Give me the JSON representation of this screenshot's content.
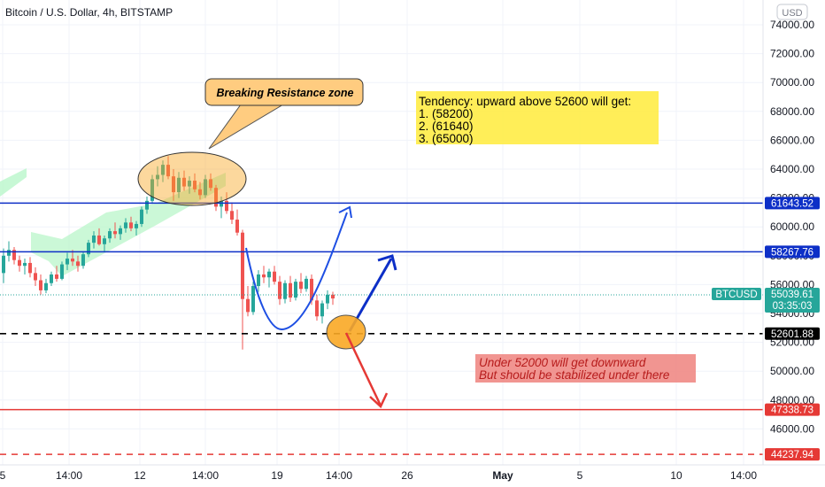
{
  "chart_data": {
    "type": "candlestick",
    "title": "Bitcoin / U.S. Dollar, 4h, BITSTAMP",
    "currency_label": "USD",
    "ylim": [
      43500,
      75500
    ],
    "y_ticks": [
      46000,
      48000,
      50000,
      52000,
      54000,
      56000,
      58000,
      60000,
      62000,
      64000,
      66000,
      68000,
      70000,
      72000,
      74000
    ],
    "x_ticks": [
      "5",
      "14:00",
      "12",
      "14:00",
      "19",
      "14:00",
      "26",
      "May",
      "5",
      "10",
      "14:00"
    ],
    "series": [
      {
        "name": "BTCUSD",
        "ohlc": [
          [
            56800,
            58500,
            56100,
            58000
          ],
          [
            58000,
            59000,
            57600,
            58400
          ],
          [
            58400,
            58600,
            57400,
            57700
          ],
          [
            57700,
            58000,
            56900,
            57300
          ],
          [
            57300,
            57800,
            56700,
            57500
          ],
          [
            57500,
            57900,
            56500,
            56800
          ],
          [
            56800,
            57200,
            55900,
            56300
          ],
          [
            56300,
            56700,
            55300,
            55600
          ],
          [
            55600,
            56400,
            55400,
            56100
          ],
          [
            56100,
            56900,
            55900,
            56700
          ],
          [
            56700,
            57300,
            56200,
            56400
          ],
          [
            56400,
            57600,
            56300,
            57400
          ],
          [
            57400,
            58200,
            57000,
            57800
          ],
          [
            57800,
            58400,
            57300,
            57600
          ],
          [
            57600,
            58000,
            56900,
            57300
          ],
          [
            57300,
            58300,
            57100,
            58100
          ],
          [
            58100,
            59100,
            57900,
            58900
          ],
          [
            58900,
            59700,
            58500,
            59400
          ],
          [
            59400,
            59900,
            58700,
            58800
          ],
          [
            58800,
            59400,
            58300,
            59200
          ],
          [
            59200,
            59900,
            58900,
            59700
          ],
          [
            59700,
            60300,
            59200,
            59500
          ],
          [
            59500,
            60100,
            59100,
            59900
          ],
          [
            59900,
            60600,
            59600,
            60300
          ],
          [
            60300,
            60700,
            59700,
            59900
          ],
          [
            59900,
            60400,
            59400,
            60200
          ],
          [
            60200,
            61400,
            60000,
            61200
          ],
          [
            61200,
            62100,
            60900,
            61800
          ],
          [
            61800,
            63600,
            61600,
            63300
          ],
          [
            63300,
            64200,
            62800,
            63600
          ],
          [
            63600,
            64600,
            63100,
            64300
          ],
          [
            64300,
            64900,
            63300,
            63500
          ],
          [
            63500,
            64000,
            61800,
            62400
          ],
          [
            62400,
            63800,
            62000,
            63400
          ],
          [
            63400,
            63900,
            62500,
            62800
          ],
          [
            62800,
            63500,
            62300,
            63200
          ],
          [
            63200,
            63700,
            62400,
            62600
          ],
          [
            62600,
            63100,
            61900,
            62200
          ],
          [
            62200,
            63600,
            62000,
            63300
          ],
          [
            63300,
            63700,
            62500,
            62700
          ],
          [
            62700,
            62900,
            61100,
            61400
          ],
          [
            61400,
            62100,
            60600,
            61800
          ],
          [
            61800,
            62400,
            60900,
            61100
          ],
          [
            61100,
            61700,
            60200,
            60500
          ],
          [
            60500,
            61200,
            59400,
            59600
          ],
          [
            59600,
            59800,
            51500,
            55000
          ],
          [
            55000,
            55900,
            53800,
            54100
          ],
          [
            54100,
            56200,
            53900,
            55900
          ],
          [
            55900,
            57000,
            55500,
            56700
          ],
          [
            56700,
            57300,
            56100,
            56500
          ],
          [
            56500,
            57100,
            55800,
            56900
          ],
          [
            56900,
            57300,
            56000,
            56200
          ],
          [
            56200,
            56600,
            54600,
            55000
          ],
          [
            55000,
            56300,
            54700,
            56100
          ],
          [
            56100,
            56600,
            54800,
            55100
          ],
          [
            55100,
            56400,
            54900,
            56200
          ],
          [
            56200,
            56800,
            55400,
            55700
          ],
          [
            55700,
            56600,
            55500,
            56400
          ],
          [
            56400,
            56700,
            54600,
            54900
          ],
          [
            54900,
            55300,
            53500,
            53800
          ],
          [
            53800,
            54900,
            53300,
            54700
          ],
          [
            54700,
            55600,
            54300,
            55300
          ],
          [
            55300,
            55500,
            54600,
            55040
          ]
        ]
      }
    ],
    "last_price": {
      "value": "55039.61",
      "countdown": "03:35:03",
      "symbol": "BTCUSD"
    },
    "levels": [
      {
        "value": 61643.52,
        "label": "61643.52",
        "color": "#0d2fc7",
        "style": "solid"
      },
      {
        "value": 58267.76,
        "label": "58267.76",
        "color": "#0d2fc7",
        "style": "solid"
      },
      {
        "value": 52601.88,
        "label": "52601.88",
        "color": "#000000",
        "style": "dashed"
      },
      {
        "value": 47338.73,
        "label": "47338.73",
        "color": "#e53935",
        "style": "solid"
      },
      {
        "value": 44237.94,
        "label": "44237.94",
        "color": "#e53935",
        "style": "dashed"
      }
    ],
    "annotations": {
      "resistance_label": "Breaking Resistance zone",
      "tendency_lines": [
        "Tendency: upward  above 52600 will get:",
        "1. (58200)",
        "2. (61640)",
        "3. (65000)"
      ],
      "downside_lines": [
        "Under 52000 will get downward",
        "But should be stabilized under there"
      ]
    },
    "colors": {
      "up": "#26a69a",
      "down": "#ef5350",
      "channel": "#b9f6ca",
      "note_yellow": "#ffeb3b",
      "note_orange": "#ffcc80",
      "note_red": "#ef8a85",
      "ellipse": "#f9a825"
    }
  }
}
